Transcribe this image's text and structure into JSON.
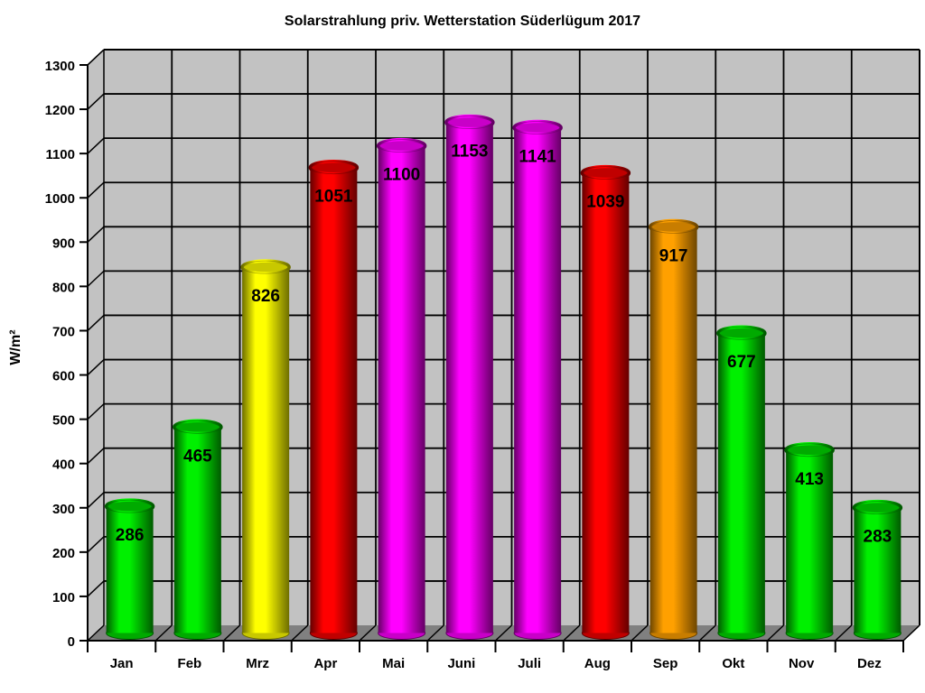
{
  "chart_data": {
    "type": "bar",
    "style": "3d-cylinder",
    "title": "Solarstrahlung priv. Wetterstation Süderlügum 2017",
    "xlabel": "",
    "ylabel": "W/m²",
    "categories": [
      "Jan",
      "Feb",
      "Mrz",
      "Apr",
      "Mai",
      "Juni",
      "Juli",
      "Aug",
      "Sep",
      "Okt",
      "Nov",
      "Dez"
    ],
    "values": [
      286,
      465,
      826,
      1051,
      1100,
      1153,
      1141,
      1039,
      917,
      677,
      413,
      283
    ],
    "bar_colors": [
      "green",
      "green",
      "yellow",
      "red",
      "magenta",
      "magenta",
      "magenta",
      "red",
      "orange",
      "green",
      "green",
      "green"
    ],
    "color_palette": {
      "green": {
        "bright": "#00f000",
        "dark": "#005a00",
        "top": "#00aa00"
      },
      "yellow": {
        "bright": "#ffff00",
        "dark": "#6e6e00",
        "top": "#c8c800"
      },
      "red": {
        "bright": "#ff0000",
        "dark": "#640000",
        "top": "#c00000"
      },
      "magenta": {
        "bright": "#ff00ff",
        "dark": "#640064",
        "top": "#c800c8"
      },
      "orange": {
        "bright": "#ffa000",
        "dark": "#6e4600",
        "top": "#c87d00"
      }
    },
    "ylim": [
      0,
      1300
    ],
    "ytick_step": 100,
    "ytick_labels": [
      "0",
      "100",
      "200",
      "300",
      "400",
      "500",
      "600",
      "700",
      "800",
      "900",
      "1000",
      "1100",
      "1200",
      "1300"
    ],
    "grid": true,
    "legend": false,
    "wall_color": "#c2c2c2",
    "floor_color": "#808080",
    "gridline_color": "#000000",
    "background": "#ffffff",
    "value_label_color": "#000000"
  }
}
